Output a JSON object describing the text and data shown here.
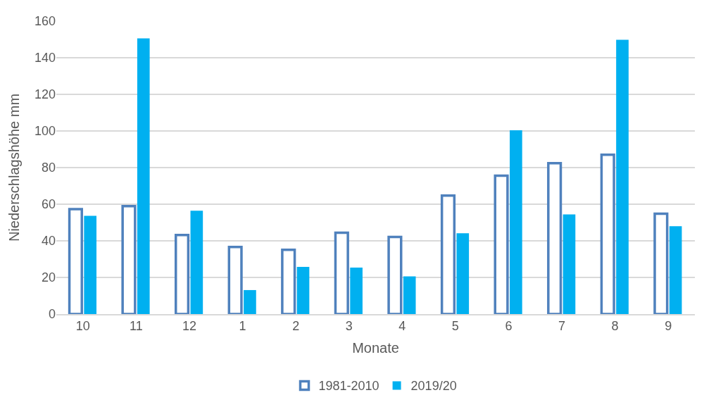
{
  "chart_data": {
    "type": "bar",
    "xlabel": "Monate",
    "ylabel": "Niederschlagshöhe mm",
    "categories": [
      "10",
      "11",
      "12",
      "1",
      "2",
      "3",
      "4",
      "5",
      "6",
      "7",
      "8",
      "9"
    ],
    "series": [
      {
        "name": "1981-2010",
        "color": "#4f81bd",
        "values": [
          57.3,
          58.9,
          43.2,
          36.6,
          35.1,
          44.4,
          42.1,
          64.7,
          75.6,
          82.4,
          87.0,
          54.8
        ]
      },
      {
        "name": "2019/20",
        "color": "#00b0f0",
        "values": [
          53.7,
          150.6,
          56.4,
          13.1,
          25.8,
          25.4,
          20.6,
          44.1,
          100.4,
          54.4,
          149.8,
          48.0
        ]
      }
    ],
    "ylim": [
      0,
      160
    ],
    "yticks": [
      0,
      20,
      40,
      60,
      80,
      100,
      120,
      140,
      160
    ],
    "grid": "y",
    "legend": "bottom"
  }
}
